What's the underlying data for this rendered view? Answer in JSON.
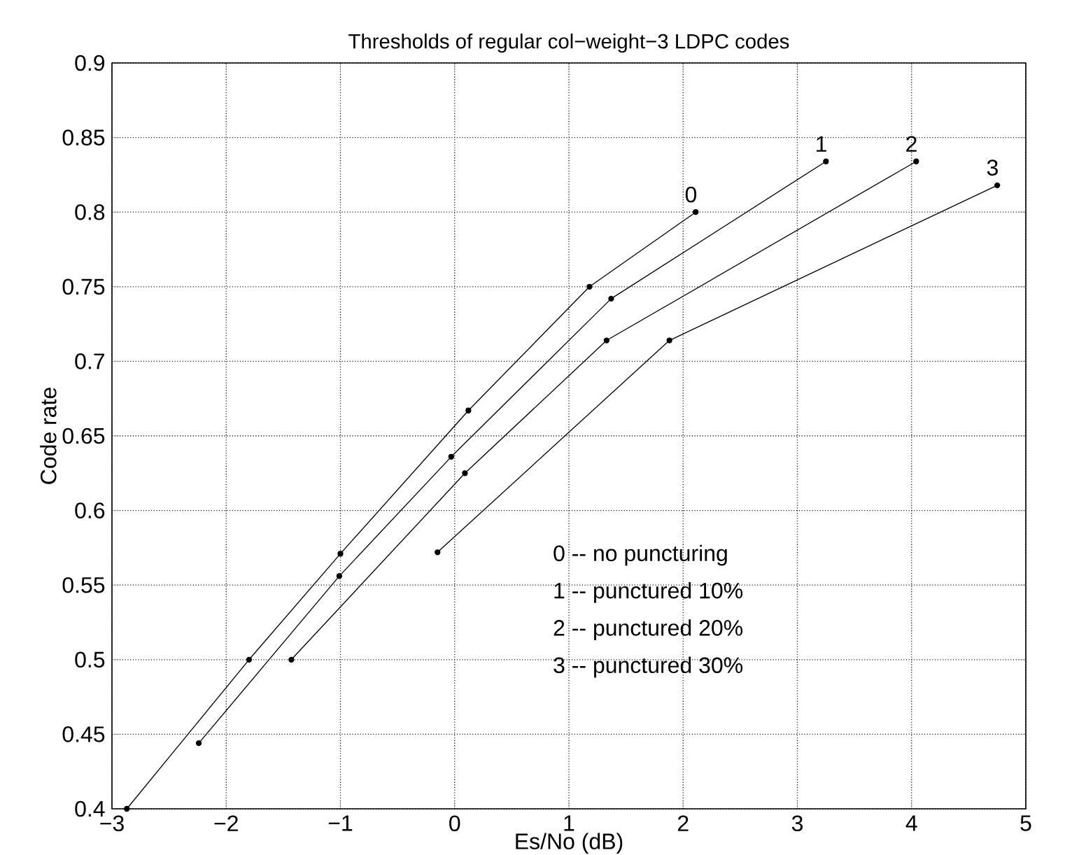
{
  "chart_data": {
    "type": "line",
    "title": "Thresholds of regular col−weight−3 LDPC codes",
    "xlabel": "Es/No (dB)",
    "ylabel": "Code rate",
    "xlim": [
      -3,
      5
    ],
    "ylim": [
      0.4,
      0.9
    ],
    "xticks": [
      {
        "value": -3,
        "label": "−3"
      },
      {
        "value": -2,
        "label": "−2"
      },
      {
        "value": -1,
        "label": "−1"
      },
      0,
      1,
      2,
      3,
      4,
      5
    ],
    "yticks": [
      0.4,
      0.45,
      0.5,
      0.55,
      0.6,
      0.65,
      0.7,
      0.75,
      0.8,
      0.85,
      0.9
    ],
    "grid": true,
    "marker": "circle",
    "line_style": "solid",
    "series": [
      {
        "name": "0",
        "color": "#000000",
        "x": [
          -2.87,
          -1.8,
          -1.0,
          0.12,
          1.18,
          2.11
        ],
        "values": [
          0.4,
          0.5,
          0.571,
          0.667,
          0.75,
          0.8
        ]
      },
      {
        "name": "1",
        "color": "#000000",
        "x": [
          -2.24,
          -1.01,
          -0.03,
          1.37,
          3.25
        ],
        "values": [
          0.444,
          0.556,
          0.636,
          0.742,
          0.834
        ]
      },
      {
        "name": "2",
        "color": "#000000",
        "x": [
          -1.43,
          0.09,
          1.33,
          4.04
        ],
        "values": [
          0.5,
          0.625,
          0.714,
          0.834
        ]
      },
      {
        "name": "3",
        "color": "#000000",
        "x": [
          -0.15,
          1.88,
          4.75
        ],
        "values": [
          0.572,
          0.714,
          0.818
        ]
      }
    ],
    "annotations": [
      "0 -- no puncturing",
      "1 -- punctured 10%",
      "2 -- punctured 20%",
      "3 -- punctured 30%"
    ]
  }
}
